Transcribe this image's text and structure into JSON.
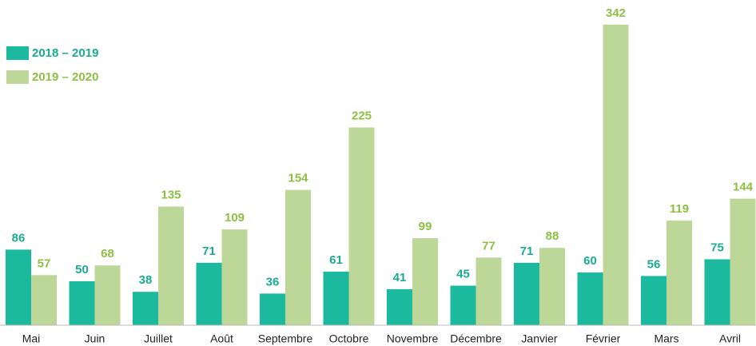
{
  "chart_data": {
    "type": "bar",
    "categories": [
      "Mai",
      "Juin",
      "Juillet",
      "Août",
      "Septembre",
      "Octobre",
      "Novembre",
      "Décembre",
      "Janvier",
      "Février",
      "Mars",
      "Avril"
    ],
    "series": [
      {
        "name": "2018 – 2019",
        "color": "#1bb99e",
        "label_color": "#1aab92",
        "values": [
          86,
          50,
          38,
          71,
          36,
          61,
          41,
          45,
          71,
          60,
          56,
          75
        ]
      },
      {
        "name": "2019 – 2020",
        "color": "#bdd799",
        "label_color": "#8cc043",
        "values": [
          57,
          68,
          135,
          109,
          154,
          225,
          99,
          77,
          88,
          342,
          119,
          144
        ]
      }
    ],
    "ylim": [
      0,
      350
    ],
    "legend": "top-left"
  }
}
